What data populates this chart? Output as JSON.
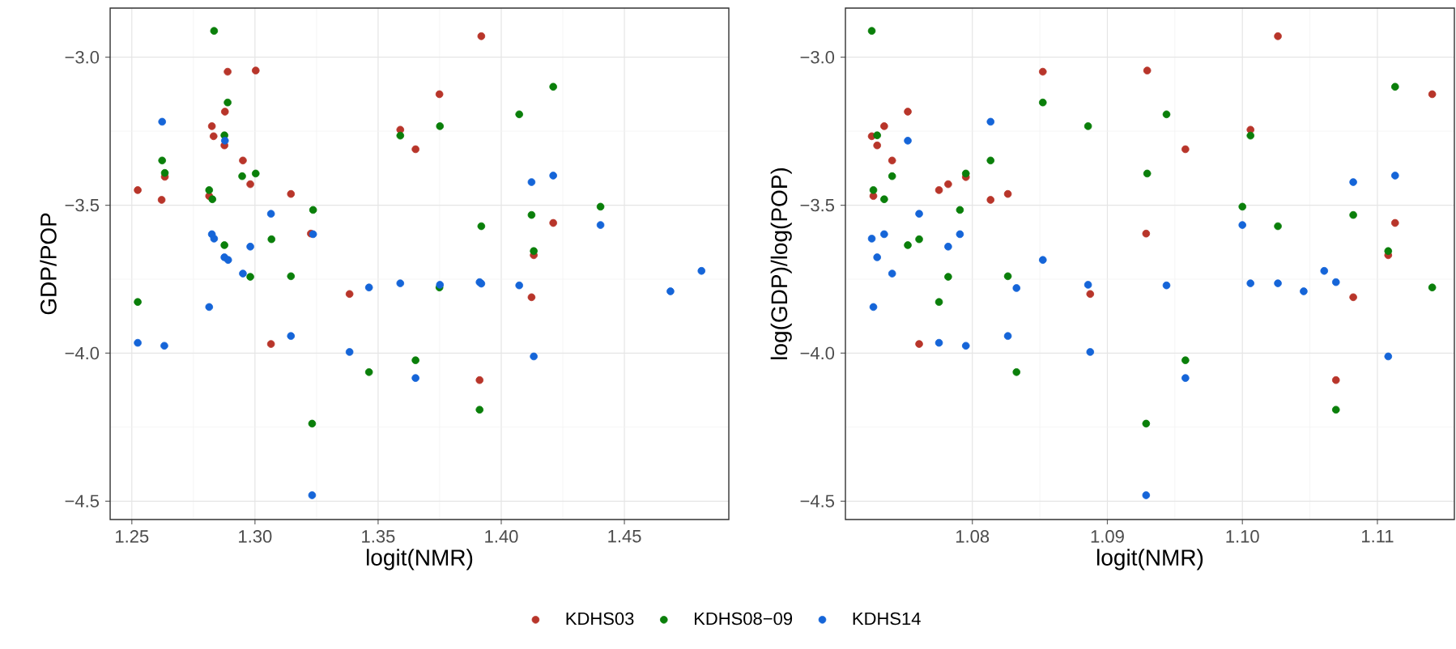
{
  "chart_data": [
    {
      "type": "scatter",
      "xlabel": "logit(NMR)",
      "ylabel": "GDP/POP",
      "xlim": [
        1.2412,
        1.4924
      ],
      "ylim": [
        -4.562,
        -2.834
      ],
      "xticks": [
        {
          "value": 1.25,
          "label": "1.25"
        },
        {
          "value": 1.3,
          "label": "1.30"
        },
        {
          "value": 1.35,
          "label": "1.35"
        },
        {
          "value": 1.4,
          "label": "1.40"
        },
        {
          "value": 1.45,
          "label": "1.45"
        }
      ],
      "yticks": [
        {
          "value": -4.5,
          "label": "−4.5"
        },
        {
          "value": -4,
          "label": "−4.0"
        },
        {
          "value": -3.5,
          "label": "−3.5"
        },
        {
          "value": -3,
          "label": "−3.0"
        }
      ],
      "grid": true,
      "marker": "circle",
      "legend": "bottom",
      "series": [
        {
          "name": "KDHS03",
          "color": "#b8352a",
          "x": [
            1.2889,
            1.3003,
            1.2878,
            1.2825,
            1.2832,
            1.2876,
            1.2951,
            1.2634,
            1.2981,
            1.2524,
            1.2814,
            1.2621,
            1.3146,
            1.3227,
            1.3384,
            1.3065,
            1.3919,
            1.3749,
            1.359,
            1.3652,
            1.4211,
            1.4132,
            1.4123,
            1.3912
          ],
          "values": [
            -3.049,
            -3.045,
            -3.184,
            -3.233,
            -3.267,
            -3.298,
            -3.349,
            -3.404,
            -3.429,
            -3.449,
            -3.469,
            -3.482,
            -3.462,
            -3.596,
            -3.8,
            -3.969,
            -2.929,
            -3.125,
            -3.245,
            -3.311,
            -3.56,
            -3.669,
            -3.811,
            -4.091
          ]
        },
        {
          "name": "KDHS08−09",
          "color": "#0a7f0a",
          "x": [
            1.2834,
            1.2889,
            1.2876,
            1.2623,
            1.2634,
            1.2948,
            1.3003,
            1.2814,
            1.2827,
            1.3236,
            1.3067,
            1.2876,
            1.2981,
            1.3146,
            1.2524,
            1.3463,
            1.3232,
            1.4211,
            1.4073,
            1.3751,
            1.359,
            1.4403,
            1.4123,
            1.3919,
            1.4132,
            1.3749,
            1.3652,
            1.3912
          ],
          "values": [
            -2.911,
            -3.153,
            -3.264,
            -3.349,
            -3.391,
            -3.402,
            -3.393,
            -3.449,
            -3.48,
            -3.516,
            -3.615,
            -3.635,
            -3.742,
            -3.74,
            -3.827,
            -4.064,
            -4.238,
            -3.1,
            -3.193,
            -3.233,
            -3.265,
            -3.505,
            -3.533,
            -3.571,
            -3.655,
            -3.778,
            -4.024,
            -4.191
          ]
        },
        {
          "name": "KDHS14",
          "color": "#1565d8",
          "x": [
            1.2623,
            1.2878,
            1.3065,
            1.3236,
            1.2825,
            1.2834,
            1.2981,
            1.2876,
            1.2891,
            1.2951,
            1.2814,
            1.3463,
            1.2524,
            1.2632,
            1.3146,
            1.3384,
            1.3232,
            1.4211,
            1.4123,
            1.4403,
            1.4813,
            1.359,
            1.3751,
            1.3912,
            1.3919,
            1.4073,
            1.4687,
            1.3652,
            1.4132
          ],
          "values": [
            -3.218,
            -3.282,
            -3.529,
            -3.598,
            -3.598,
            -3.613,
            -3.64,
            -3.676,
            -3.685,
            -3.731,
            -3.844,
            -3.778,
            -3.965,
            -3.975,
            -3.942,
            -3.996,
            -4.48,
            -3.4,
            -3.422,
            -3.567,
            -3.722,
            -3.764,
            -3.769,
            -3.76,
            -3.765,
            -3.771,
            -3.791,
            -4.084,
            -4.011
          ]
        }
      ]
    },
    {
      "type": "scatter",
      "xlabel": "logit(NMR)",
      "ylabel": "log(GDP)/log(POP)",
      "xlim": [
        1.0706,
        1.1157
      ],
      "ylim": [
        -4.562,
        -2.834
      ],
      "xticks": [
        {
          "value": 1.08,
          "label": "1.08"
        },
        {
          "value": 1.09,
          "label": "1.09"
        },
        {
          "value": 1.1,
          "label": "1.10"
        },
        {
          "value": 1.11,
          "label": "1.11"
        }
      ],
      "yticks": [
        {
          "value": -4.5,
          "label": "−4.5"
        },
        {
          "value": -4,
          "label": "−4.0"
        },
        {
          "value": -3.5,
          "label": "−3.5"
        },
        {
          "value": -3,
          "label": "−3.0"
        }
      ],
      "grid": true,
      "marker": "circle",
      "series": [
        {
          "color": "#b8352a",
          "x": [
            1.08522,
            1.09295,
            1.07522,
            1.07347,
            1.07255,
            1.07295,
            1.07406,
            1.07952,
            1.07821,
            1.07753,
            1.07267,
            1.08135,
            1.08263,
            1.09287,
            1.08873,
            1.07606,
            1.10263,
            1.11406,
            1.1006,
            1.09578,
            1.11131,
            1.1108,
            1.10821,
            1.10693
          ],
          "values": [
            -3.049,
            -3.045,
            -3.184,
            -3.233,
            -3.267,
            -3.298,
            -3.349,
            -3.405,
            -3.429,
            -3.449,
            -3.469,
            -3.482,
            -3.462,
            -3.596,
            -3.8,
            -3.969,
            -2.929,
            -3.125,
            -3.245,
            -3.311,
            -3.56,
            -3.669,
            -3.811,
            -4.091
          ]
        },
        {
          "color": "#0a7f0a",
          "x": [
            1.07255,
            1.08522,
            1.08857,
            1.07295,
            1.08135,
            1.09295,
            1.07406,
            1.07952,
            1.07267,
            1.07347,
            1.07908,
            1.07606,
            1.07522,
            1.07821,
            1.08263,
            1.07753,
            1.08327,
            1.09287,
            1.11131,
            1.09438,
            1.1006,
            1.1,
            1.10821,
            1.10263,
            1.1108,
            1.11406,
            1.09578,
            1.10693
          ],
          "values": [
            -2.911,
            -3.153,
            -3.233,
            -3.264,
            -3.349,
            -3.393,
            -3.402,
            -3.393,
            -3.449,
            -3.48,
            -3.516,
            -3.615,
            -3.635,
            -3.742,
            -3.74,
            -3.827,
            -4.064,
            -4.238,
            -3.1,
            -3.193,
            -3.265,
            -3.505,
            -3.533,
            -3.571,
            -3.655,
            -3.778,
            -4.024,
            -4.191
          ]
        },
        {
          "color": "#1565d8",
          "x": [
            1.08135,
            1.07522,
            1.07606,
            1.07347,
            1.07908,
            1.07255,
            1.07821,
            1.07295,
            1.08522,
            1.07406,
            1.08327,
            1.08857,
            1.07267,
            1.09438,
            1.07753,
            1.07952,
            1.08263,
            1.08873,
            1.09287,
            1.11131,
            1.10821,
            1.1,
            1.10606,
            1.1006,
            1.10263,
            1.10693,
            1.10454,
            1.09578,
            1.1108
          ],
          "values": [
            -3.218,
            -3.282,
            -3.529,
            -3.598,
            -3.598,
            -3.613,
            -3.64,
            -3.676,
            -3.685,
            -3.731,
            -3.78,
            -3.769,
            -3.844,
            -3.771,
            -3.965,
            -3.975,
            -3.942,
            -3.996,
            -4.48,
            -3.4,
            -3.422,
            -3.567,
            -3.722,
            -3.764,
            -3.764,
            -3.76,
            -3.791,
            -4.084,
            -4.011
          ]
        }
      ]
    }
  ]
}
